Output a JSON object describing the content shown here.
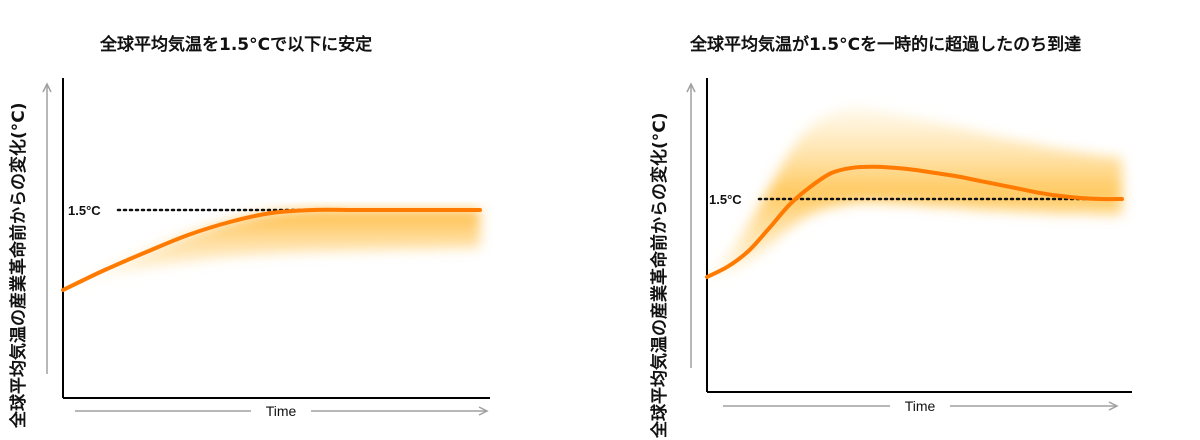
{
  "chart_data": [
    {
      "type": "line",
      "title": "全球平均気温を1.5°Cで以下に安定",
      "ylabel": "全球平均気温の産業革命前からの変化(°C)",
      "xlabel": "Time",
      "reference_label": "1.5°C",
      "reference_value": 1.5,
      "ylim": [
        0,
        2.5
      ],
      "series": [
        {
          "x": [
            0,
            0.1,
            0.2,
            0.3,
            0.4,
            0.5,
            0.6,
            0.7,
            0.8,
            0.9,
            1.0
          ],
          "y": [
            0.7,
            0.9,
            1.08,
            1.25,
            1.38,
            1.47,
            1.5,
            1.5,
            1.5,
            1.5,
            1.5
          ]
        }
      ],
      "band": {
        "x": [
          0,
          0.1,
          0.2,
          0.3,
          0.4,
          0.5,
          0.6,
          0.7,
          0.8,
          0.9,
          1.0
        ],
        "lower": [
          0.7,
          0.85,
          0.92,
          0.98,
          1.03,
          1.06,
          1.08,
          1.09,
          1.1,
          1.11,
          1.12
        ],
        "upper": [
          0.7,
          0.9,
          1.08,
          1.25,
          1.38,
          1.47,
          1.5,
          1.5,
          1.5,
          1.5,
          1.5
        ]
      }
    },
    {
      "type": "line",
      "title": "全球平均気温が1.5°Cを一時的に超過したのち到達",
      "ylabel": "全球平均気温の産業革命前からの変化(°C)",
      "xlabel": "Time",
      "reference_label": "1.5°C",
      "reference_value": 1.5,
      "ylim": [
        0,
        2.5
      ],
      "series": [
        {
          "x": [
            0,
            0.05,
            0.1,
            0.15,
            0.2,
            0.25,
            0.3,
            0.35,
            0.4,
            0.45,
            0.5,
            0.55,
            0.6,
            0.65,
            0.7,
            0.75,
            0.8,
            0.85,
            0.9,
            0.95,
            1.0
          ],
          "y": [
            0.75,
            0.85,
            1.0,
            1.22,
            1.45,
            1.62,
            1.75,
            1.8,
            1.81,
            1.8,
            1.78,
            1.75,
            1.72,
            1.68,
            1.64,
            1.6,
            1.56,
            1.53,
            1.51,
            1.5,
            1.5
          ]
        }
      ],
      "band": {
        "x": [
          0,
          0.05,
          0.1,
          0.15,
          0.2,
          0.25,
          0.3,
          0.35,
          0.4,
          0.45,
          0.5,
          0.55,
          0.6,
          0.65,
          0.7,
          0.75,
          0.8,
          0.85,
          0.9,
          0.95,
          1.0
        ],
        "lower": [
          0.75,
          0.8,
          0.9,
          1.05,
          1.22,
          1.35,
          1.42,
          1.46,
          1.47,
          1.46,
          1.45,
          1.43,
          1.42,
          1.4,
          1.39,
          1.38,
          1.37,
          1.36,
          1.36,
          1.35,
          1.35
        ],
        "upper": [
          0.75,
          0.95,
          1.25,
          1.6,
          1.95,
          2.2,
          2.32,
          2.38,
          2.36,
          2.32,
          2.28,
          2.24,
          2.2,
          2.15,
          2.1,
          2.06,
          2.02,
          1.98,
          1.95,
          1.92,
          1.9
        ]
      }
    }
  ],
  "colors": {
    "line": "#ff7a00",
    "band_dark": "#ffb733",
    "band_light": "#fff3d6",
    "axis": "#000000",
    "arrow": "#a0a0a0",
    "reference": "#111111"
  }
}
